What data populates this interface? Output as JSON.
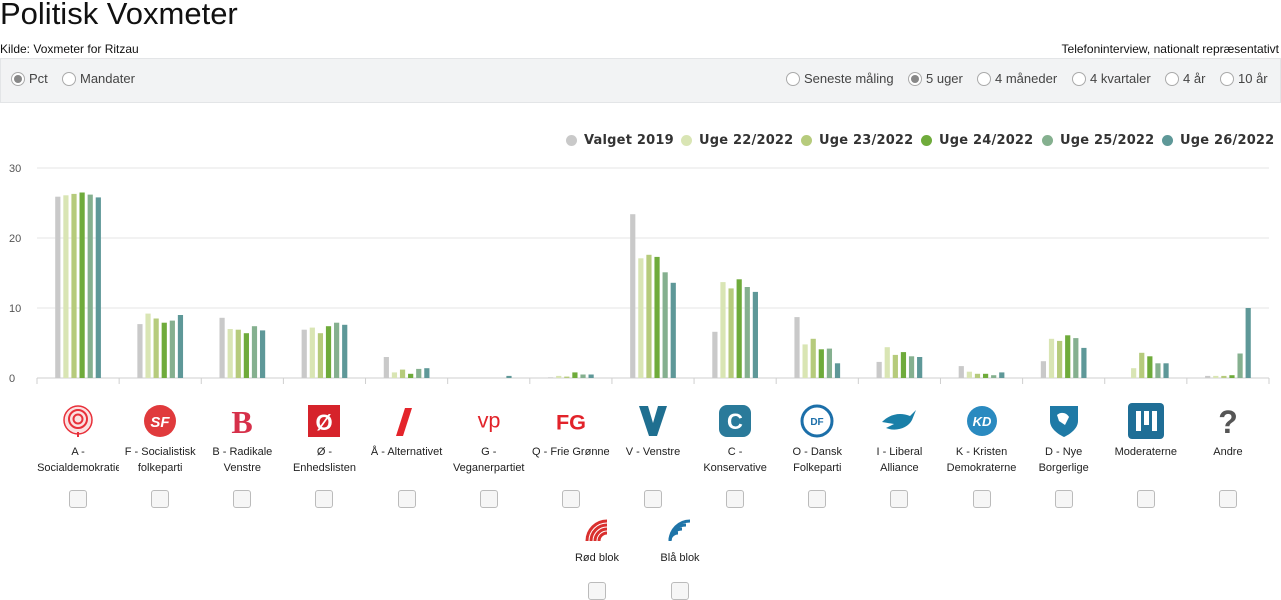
{
  "header": {
    "title": "Politisk Voxmeter",
    "source": "Kilde: Voxmeter for Ritzau",
    "method": "Telefoninterview, nationalt repræsentativt"
  },
  "toggles": {
    "mode": [
      {
        "label": "Pct",
        "selected": true
      },
      {
        "label": "Mandater",
        "selected": false
      }
    ],
    "period": [
      {
        "label": "Seneste måling",
        "selected": false
      },
      {
        "label": "5 uger",
        "selected": true
      },
      {
        "label": "4 måneder",
        "selected": false
      },
      {
        "label": "4 kvartaler",
        "selected": false
      },
      {
        "label": "4 år",
        "selected": false
      },
      {
        "label": "10 år",
        "selected": false
      }
    ]
  },
  "chart_data": {
    "type": "bar",
    "ylim": [
      0,
      30
    ],
    "yticks": [
      0,
      10,
      20,
      30
    ],
    "grid": true,
    "legend_position": "top-right",
    "categories": [
      "A",
      "F",
      "B",
      "Ø",
      "Å",
      "G",
      "Q",
      "V",
      "C",
      "O",
      "I",
      "K",
      "D",
      "M",
      "Andre"
    ],
    "series": [
      {
        "name": "Valget 2019",
        "color": "#c9c9c9",
        "values": [
          25.9,
          7.7,
          8.6,
          6.9,
          3.0,
          0,
          0.1,
          23.4,
          6.6,
          8.7,
          2.3,
          1.7,
          2.4,
          0,
          0.3
        ]
      },
      {
        "name": "Uge 22/2022",
        "color": "#d9e5b4",
        "values": [
          26.1,
          9.2,
          7.0,
          7.2,
          0.8,
          0,
          0.3,
          17.1,
          13.7,
          4.8,
          4.4,
          0.9,
          5.6,
          1.4,
          0.3
        ]
      },
      {
        "name": "Uge 23/2022",
        "color": "#b6cb7c",
        "values": [
          26.3,
          8.5,
          6.9,
          6.4,
          1.2,
          0,
          0.2,
          17.6,
          12.8,
          5.6,
          3.3,
          0.6,
          5.3,
          3.6,
          0.3
        ]
      },
      {
        "name": "Uge 24/2022",
        "color": "#6fab3b",
        "values": [
          26.5,
          7.9,
          6.4,
          7.4,
          0.6,
          0,
          0.8,
          17.3,
          14.1,
          4.1,
          3.7,
          0.6,
          6.1,
          3.1,
          0.4
        ]
      },
      {
        "name": "Uge 25/2022",
        "color": "#85b08f",
        "values": [
          26.2,
          8.2,
          7.4,
          7.9,
          1.3,
          0,
          0.5,
          15.1,
          13.0,
          4.2,
          3.1,
          0.4,
          5.7,
          2.1,
          3.5
        ]
      },
      {
        "name": "Uge 26/2022",
        "color": "#5e9898",
        "values": [
          25.8,
          9.0,
          6.8,
          7.6,
          1.4,
          0.3,
          0.5,
          13.6,
          12.3,
          2.1,
          3.0,
          0.8,
          4.3,
          2.1,
          10.0
        ]
      }
    ]
  },
  "parties": [
    {
      "name_lines": [
        "A -",
        "Socialdemokratiet"
      ],
      "icon": "rose-icon",
      "color": "#e8303a",
      "logo_text": ""
    },
    {
      "name_lines": [
        "F - Socialistisk",
        "folkeparti"
      ],
      "icon": "sf-logo-icon",
      "color": "#e03a3c",
      "logo_text": "SF"
    },
    {
      "name_lines": [
        "B - Radikale",
        "Venstre"
      ],
      "icon": "b-logo-icon",
      "color": "#d6304a",
      "logo_text": "B"
    },
    {
      "name_lines": [
        "Ø -",
        "Enhedslisten"
      ],
      "icon": "oe-logo-icon",
      "color": "#d6232b",
      "logo_text": "Ø"
    },
    {
      "name_lines": [
        "Å - Alternativet",
        ""
      ],
      "icon": "aa-logo-icon",
      "color": "#e4242b",
      "logo_text": ""
    },
    {
      "name_lines": [
        "G -",
        "Veganerpartiet"
      ],
      "icon": "vp-logo-icon",
      "color": "#e2232a",
      "logo_text": "vp"
    },
    {
      "name_lines": [
        "Q - Frie Grønne",
        ""
      ],
      "icon": "fg-logo-icon",
      "color": "#e2232a",
      "logo_text": "FG"
    },
    {
      "name_lines": [
        "V - Venstre",
        ""
      ],
      "icon": "v-logo-icon",
      "color": "#1f6f90",
      "logo_text": "V"
    },
    {
      "name_lines": [
        "C -",
        "Konservative"
      ],
      "icon": "c-logo-icon",
      "color": "#2a7a9a",
      "logo_text": "C"
    },
    {
      "name_lines": [
        "O - Dansk",
        "Folkeparti"
      ],
      "icon": "df-logo-icon",
      "color": "#1c6fa9",
      "logo_text": "DF"
    },
    {
      "name_lines": [
        "I - Liberal",
        "Alliance"
      ],
      "icon": "bird-logo-icon",
      "color": "#1a7fa8",
      "logo_text": ""
    },
    {
      "name_lines": [
        "K - Kristen",
        "Demokraterne"
      ],
      "icon": "kd-logo-icon",
      "color": "#2a8ac0",
      "logo_text": "KD"
    },
    {
      "name_lines": [
        "D - Nye",
        "Borgerlige"
      ],
      "icon": "shield-logo-icon",
      "color": "#1f7aa6",
      "logo_text": ""
    },
    {
      "name_lines": [
        "Moderaterne",
        ""
      ],
      "icon": "m-logo-icon",
      "color": "#1f6e96",
      "logo_text": ""
    },
    {
      "name_lines": [
        "Andre",
        ""
      ],
      "icon": "question-icon",
      "color": "#555555",
      "logo_text": "?"
    }
  ],
  "blocs": [
    {
      "label": "Rød blok",
      "icon": "red-bloc-icon",
      "color": "#d9302e"
    },
    {
      "label": "Blå blok",
      "icon": "blue-bloc-icon",
      "color": "#1f74a8"
    }
  ]
}
